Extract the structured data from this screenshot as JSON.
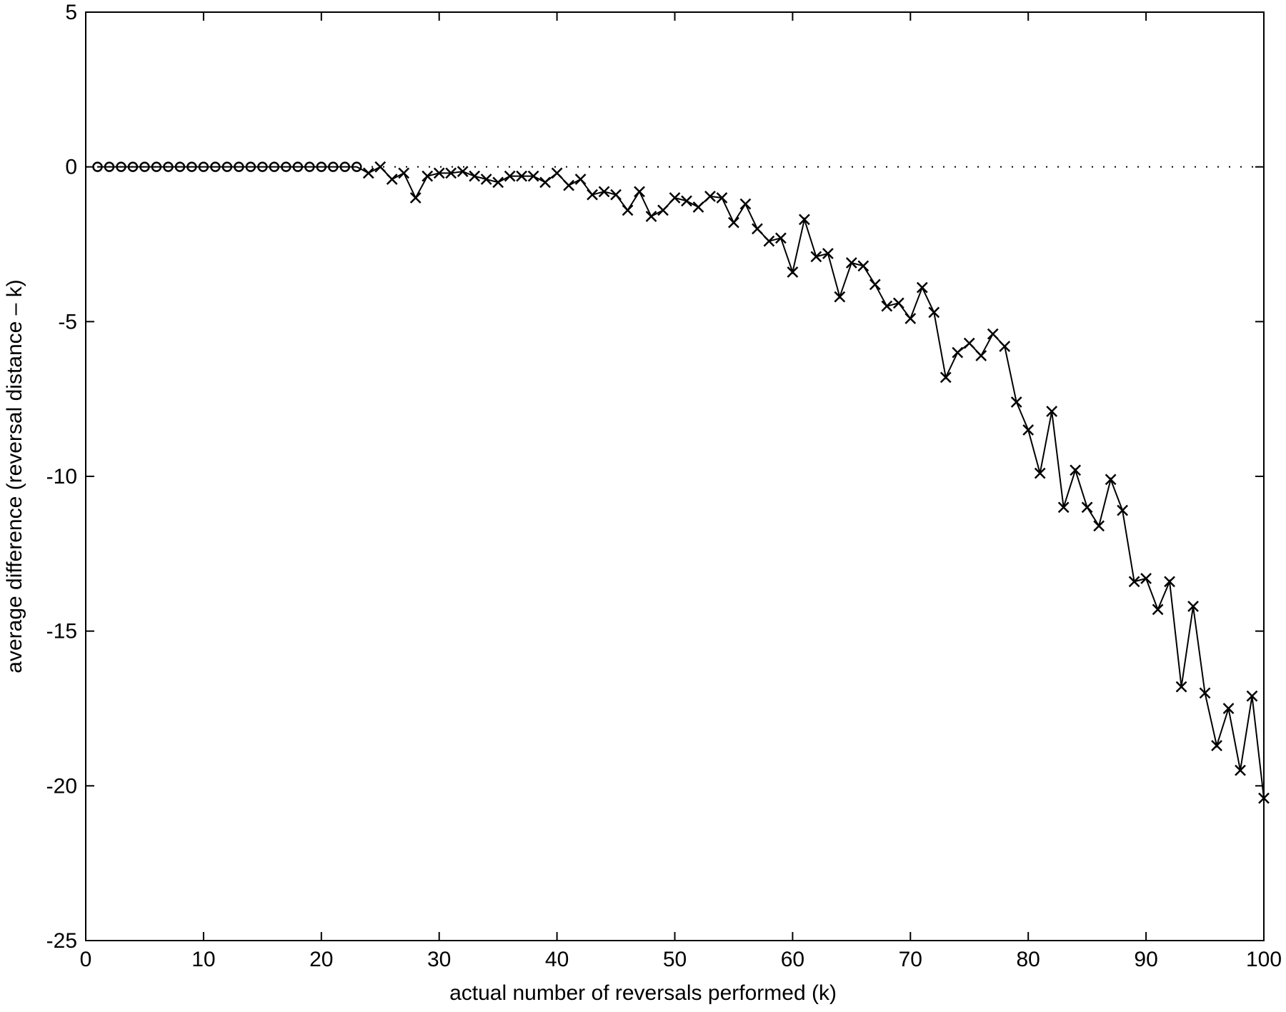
{
  "chart_data": {
    "type": "line",
    "xlabel": "actual number of reversals performed (k)",
    "ylabel": "average difference (reversal distance – k)",
    "xlim": [
      0,
      100
    ],
    "ylim": [
      -25,
      5
    ],
    "xticks": [
      0,
      10,
      20,
      30,
      40,
      50,
      60,
      70,
      80,
      90,
      100
    ],
    "yticks": [
      -25,
      -20,
      -15,
      -10,
      -5,
      0,
      5
    ],
    "reference_line": {
      "y": 0,
      "style": "dotted"
    },
    "series": [
      {
        "marker": "o",
        "color": "#000000",
        "x": [
          1,
          2,
          3,
          4,
          5,
          6,
          7,
          8,
          9,
          10,
          11,
          12,
          13,
          14,
          15,
          16,
          17,
          18,
          19,
          20,
          21,
          22,
          23
        ],
        "values": [
          0,
          0,
          0,
          0,
          0,
          0,
          0,
          0,
          0,
          0,
          0,
          0,
          0,
          0,
          0,
          0,
          0,
          0,
          0,
          0,
          0,
          0,
          0
        ]
      },
      {
        "marker": "x",
        "color": "#000000",
        "x": [
          24,
          25,
          26,
          27,
          28,
          29,
          30,
          31,
          32,
          33,
          34,
          35,
          36,
          37,
          38,
          39,
          40,
          41,
          42,
          43,
          44,
          45,
          46,
          47,
          48,
          49,
          50,
          51,
          52,
          53,
          54,
          55,
          56,
          57,
          58,
          59,
          60,
          61,
          62,
          63,
          64,
          65,
          66,
          67,
          68,
          69,
          70,
          71,
          72,
          73,
          74,
          75,
          76,
          77,
          78,
          79,
          80,
          81,
          82,
          83,
          84,
          85,
          86,
          87,
          88,
          89,
          90,
          91,
          92,
          93,
          94,
          95,
          96,
          97,
          98,
          99,
          100
        ],
        "values": [
          -0.2,
          0,
          -0.4,
          -0.2,
          -1.0,
          -0.3,
          -0.2,
          -0.2,
          -0.15,
          -0.3,
          -0.4,
          -0.5,
          -0.3,
          -0.3,
          -0.3,
          -0.5,
          -0.2,
          -0.6,
          -0.4,
          -0.9,
          -0.8,
          -0.9,
          -1.4,
          -0.8,
          -1.6,
          -1.4,
          -1.0,
          -1.1,
          -1.3,
          -0.95,
          -1.0,
          -1.8,
          -1.2,
          -2.0,
          -2.4,
          -2.3,
          -3.4,
          -1.7,
          -2.9,
          -2.8,
          -4.2,
          -3.1,
          -3.2,
          -3.8,
          -4.5,
          -4.4,
          -4.9,
          -3.9,
          -4.7,
          -6.8,
          -6.0,
          -5.7,
          -6.1,
          -5.4,
          -5.8,
          -7.6,
          -8.5,
          -9.9,
          -7.9,
          -11.0,
          -9.8,
          -11.0,
          -11.6,
          -10.1,
          -11.1,
          -13.4,
          -13.3,
          -14.3,
          -13.4,
          -16.8,
          -14.2,
          -17.0,
          -18.7,
          -17.5,
          -19.5,
          -17.1,
          -20.4
        ]
      }
    ]
  }
}
